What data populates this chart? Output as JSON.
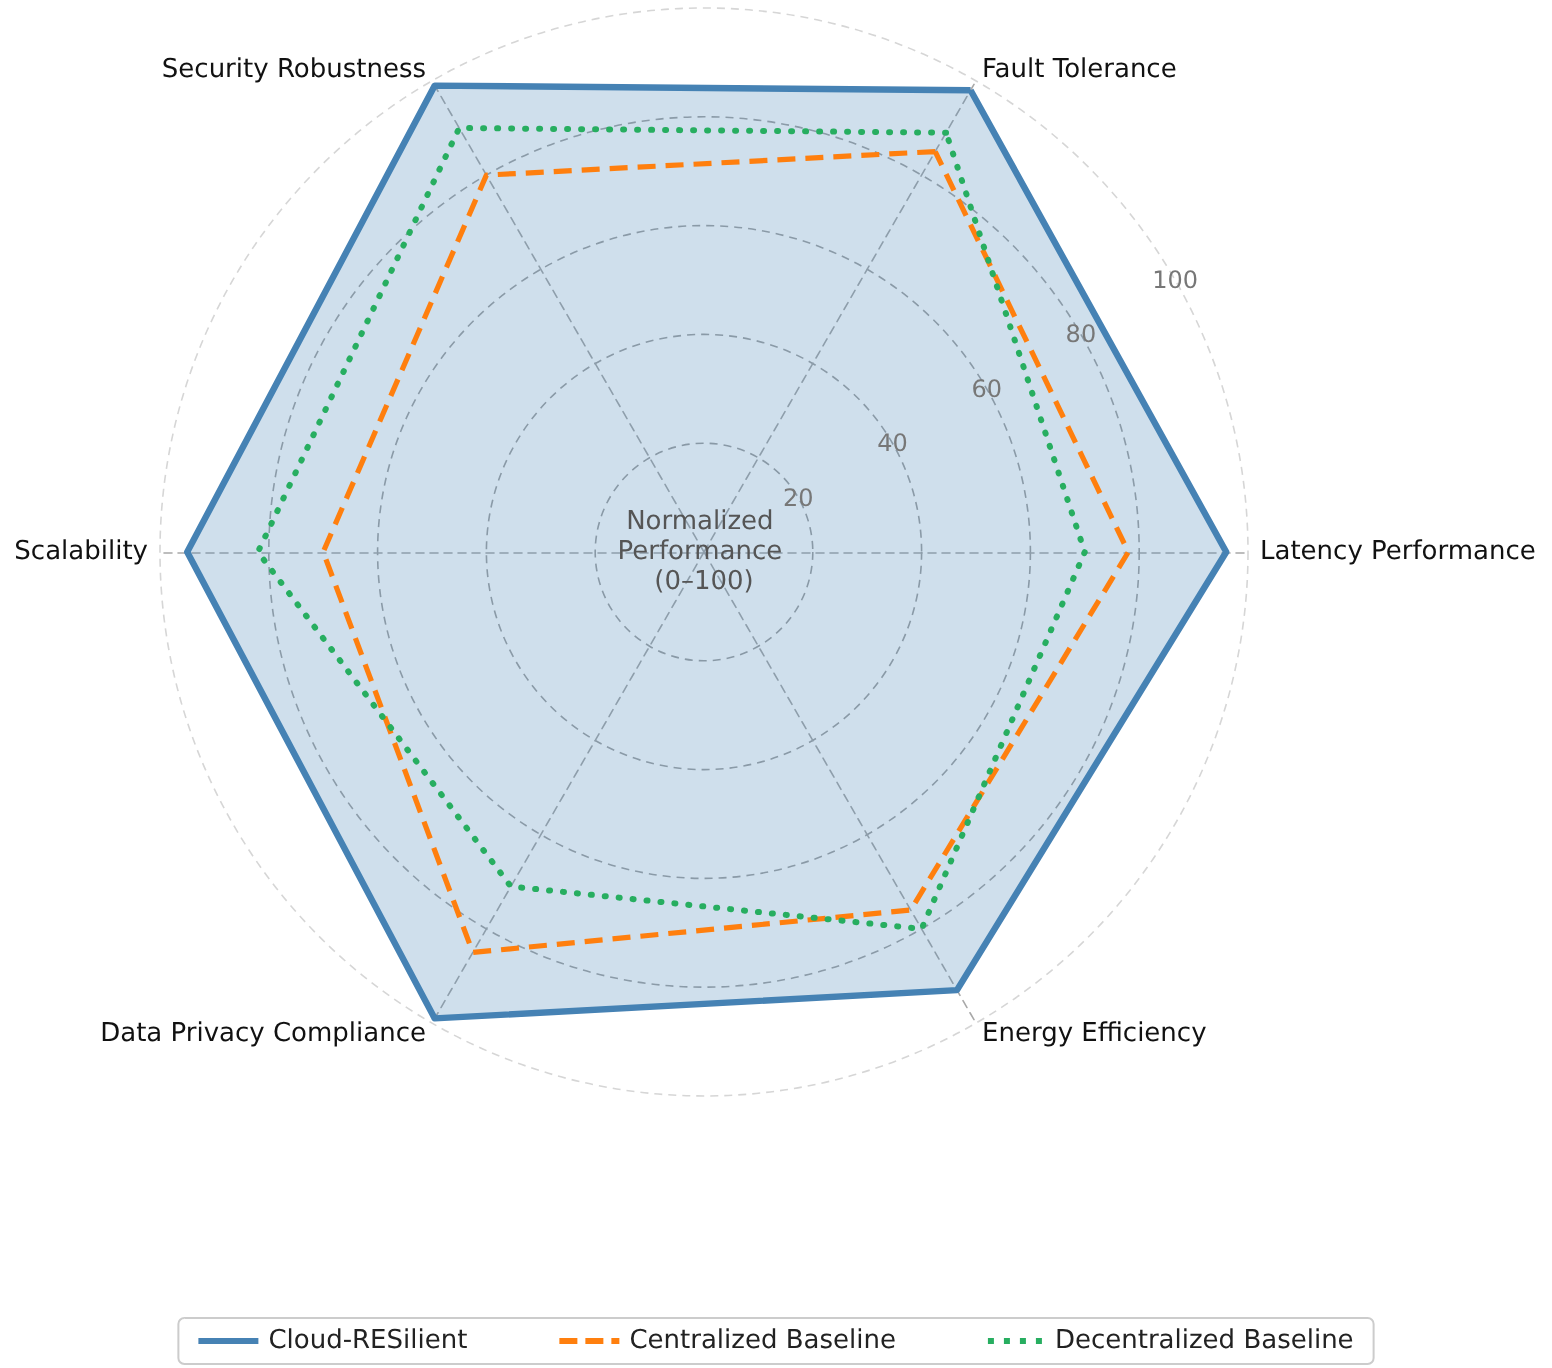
{
  "chart_data": {
    "type": "radar",
    "categories": [
      "Fault Tolerance",
      "Latency Performance",
      "Energy Efficiency",
      "Data Privacy Compliance",
      "Scalability",
      "Security Robustness"
    ],
    "series": [
      {
        "name": "Cloud-RESilient",
        "color": "#4682b4",
        "line_style": "solid",
        "values": [
          98,
          96,
          93,
          99,
          95,
          99
        ]
      },
      {
        "name": "Centralized Baseline",
        "color": "#ff7f0e",
        "line_style": "dashed",
        "values": [
          85,
          78,
          76,
          85,
          70,
          80
        ]
      },
      {
        "name": "Decentralized Baseline",
        "color": "#27ae60",
        "line_style": "dotted",
        "values": [
          89,
          70,
          80,
          71,
          82,
          90
        ]
      }
    ],
    "ylabel": "Normalized Performance (0–100)",
    "ylim": [
      0,
      100
    ],
    "yticks": [
      20,
      40,
      60,
      80,
      100
    ],
    "grid": true,
    "legend": "bottom",
    "marker": "none"
  }
}
